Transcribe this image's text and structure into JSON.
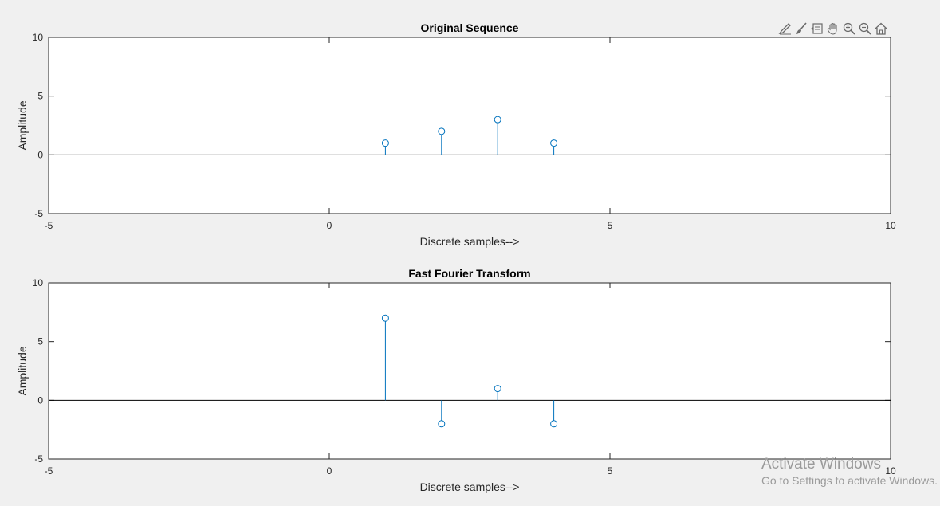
{
  "toolbar": {
    "icons": [
      "edit-plot-icon",
      "brush-icon",
      "data-tips-icon",
      "pan-icon",
      "zoom-in-icon",
      "zoom-out-icon",
      "restore-view-icon"
    ]
  },
  "chart_data": [
    {
      "type": "stem",
      "title": "Original Sequence",
      "xlabel": "Discrete samples-->",
      "ylabel": "Amplitude",
      "xlim": [
        -5,
        10
      ],
      "ylim": [
        -5,
        10
      ],
      "xticks": [
        -5,
        0,
        5,
        10
      ],
      "yticks": [
        -5,
        0,
        5,
        10
      ],
      "baseline": 0,
      "grid": false,
      "marker": "circle",
      "color": "#0072bd",
      "x": [
        1,
        2,
        3,
        4
      ],
      "y": [
        1,
        2,
        3,
        1
      ]
    },
    {
      "type": "stem",
      "title": "Fast Fourier Transform",
      "xlabel": "Discrete samples-->",
      "ylabel": "Amplitude",
      "xlim": [
        -5,
        10
      ],
      "ylim": [
        -5,
        10
      ],
      "xticks": [
        -5,
        0,
        5,
        10
      ],
      "yticks": [
        -5,
        0,
        5,
        10
      ],
      "baseline": 0,
      "grid": false,
      "marker": "circle",
      "color": "#0072bd",
      "x": [
        1,
        2,
        3,
        4
      ],
      "y": [
        7,
        -2,
        1,
        -2
      ]
    }
  ],
  "watermark": {
    "title": "Activate Windows",
    "subtitle": "Go to Settings to activate Windows."
  }
}
